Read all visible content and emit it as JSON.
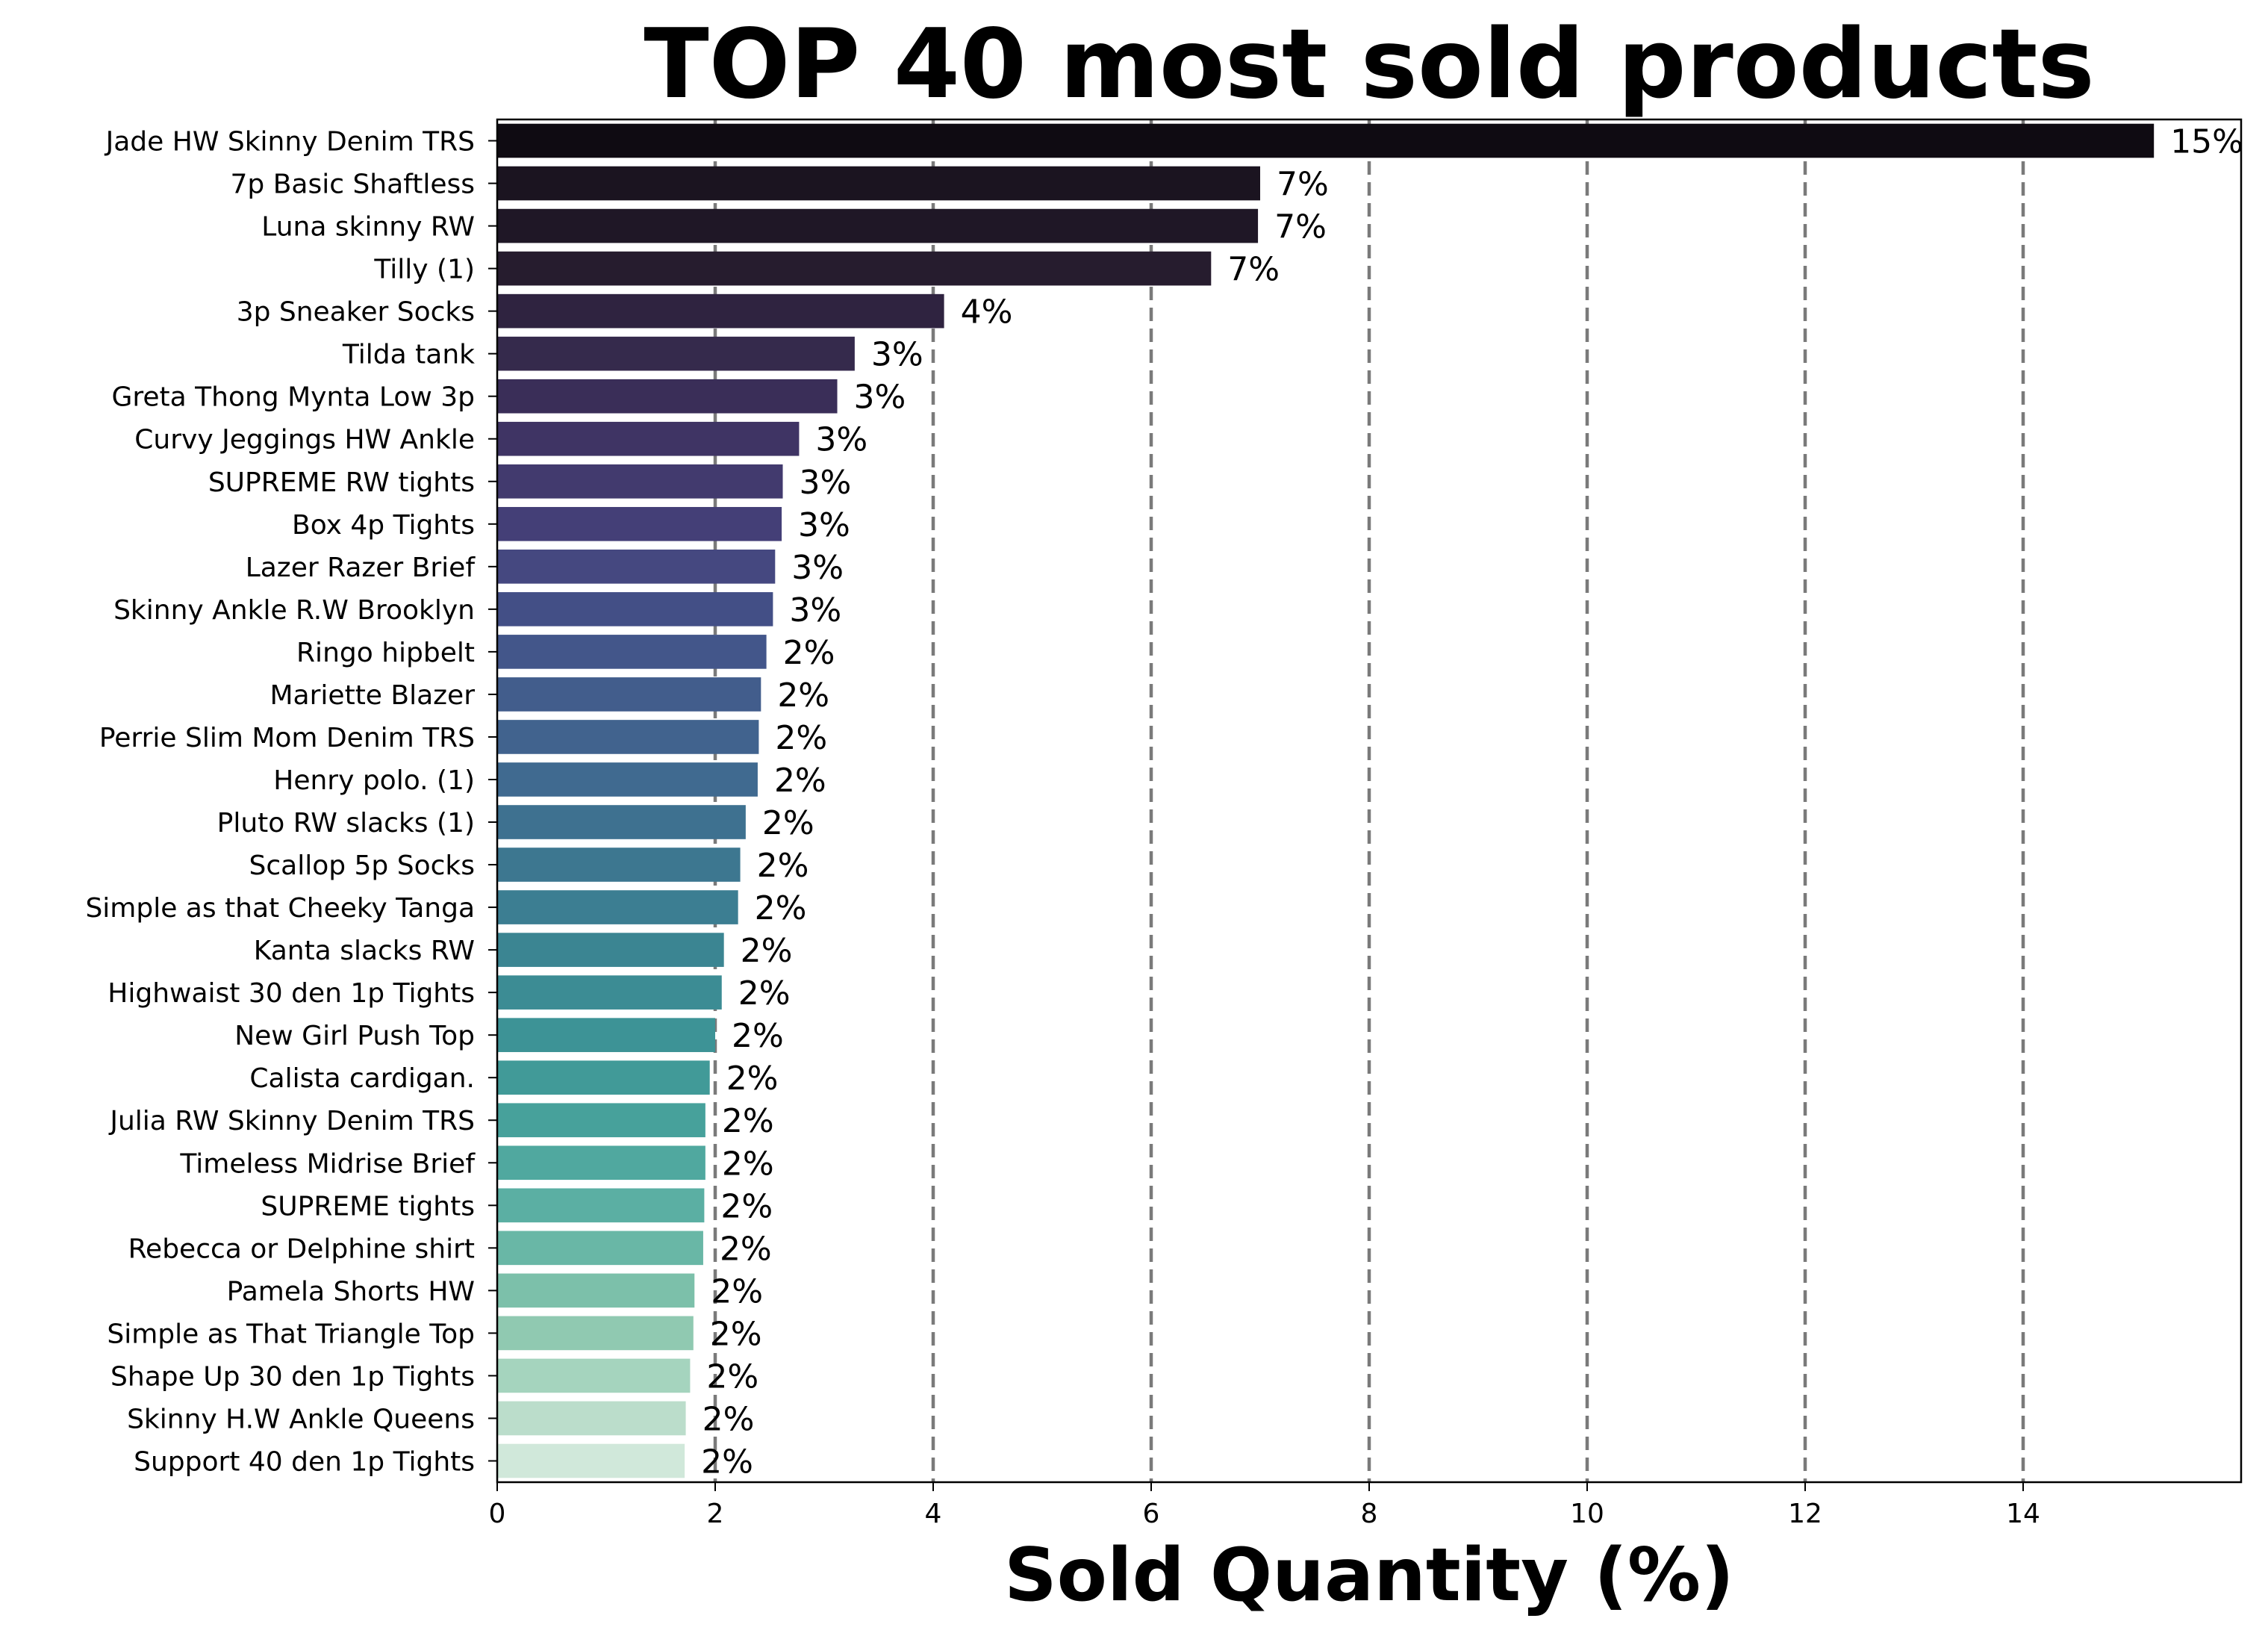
{
  "chart_data": {
    "type": "bar",
    "orientation": "horizontal",
    "title": "TOP 40 most sold products",
    "xlabel": "Sold Quantity (%)",
    "ylabel": "",
    "xlim": [
      0,
      16
    ],
    "x_ticks": [
      0,
      2,
      4,
      6,
      8,
      10,
      12,
      14
    ],
    "grid": "vertical dashed lines at x ticks",
    "colormap": "mako (dark to light)",
    "categories": [
      "Jade HW Skinny Denim TRS",
      "7p Basic Shaftless",
      "Luna skinny RW",
      "Tilly (1)",
      "3p Sneaker Socks",
      "Tilda tank",
      "Greta Thong Mynta Low 3p",
      "Curvy Jeggings HW Ankle",
      "SUPREME RW tights",
      "Box 4p Tights",
      "Lazer Razer Brief",
      "Skinny Ankle R.W Brooklyn",
      "Ringo hipbelt",
      "Mariette Blazer",
      "Perrie Slim Mom Denim TRS",
      "Henry polo. (1)",
      "Pluto RW slacks (1)",
      "Scallop 5p Socks",
      "Simple as that Cheeky Tanga",
      "Kanta slacks RW",
      "Highwaist 30 den 1p Tights",
      "New Girl Push Top",
      "Calista cardigan.",
      "Julia RW Skinny Denim TRS",
      "Timeless Midrise Brief",
      "SUPREME tights",
      "Rebecca or Delphine shirt",
      "Pamela Shorts HW",
      "Simple as That Triangle Top",
      "Shape Up 30 den 1p Tights",
      "Skinny H.W Ankle Queens",
      "Support 40 den 1p Tights"
    ],
    "values": [
      15.2,
      7.0,
      6.98,
      6.55,
      4.1,
      3.28,
      3.12,
      2.77,
      2.62,
      2.61,
      2.55,
      2.53,
      2.47,
      2.42,
      2.4,
      2.39,
      2.28,
      2.23,
      2.21,
      2.08,
      2.06,
      2.0,
      1.95,
      1.91,
      1.91,
      1.9,
      1.89,
      1.81,
      1.8,
      1.77,
      1.73,
      1.72
    ],
    "data_labels": [
      "15%",
      "7%",
      "7%",
      "7%",
      "4%",
      "3%",
      "3%",
      "3%",
      "3%",
      "3%",
      "3%",
      "3%",
      "2%",
      "2%",
      "2%",
      "2%",
      "2%",
      "2%",
      "2%",
      "2%",
      "2%",
      "2%",
      "2%",
      "2%",
      "2%",
      "2%",
      "2%",
      "2%",
      "2%",
      "2%",
      "2%",
      "2%"
    ],
    "colors": [
      "#0f0b12",
      "#1b1420",
      "#1f1726",
      "#261c2e",
      "#2f2340",
      "#352a4c",
      "#3a2e58",
      "#3f3464",
      "#423a6e",
      "#443f77",
      "#454880",
      "#434f86",
      "#43568a",
      "#425d8c",
      "#41638e",
      "#406a90",
      "#3e7190",
      "#3d7790",
      "#3c7e92",
      "#3b8592",
      "#3c8c94",
      "#3d9396",
      "#419a98",
      "#47a19b",
      "#50a89f",
      "#5bafa3",
      "#69b7a6",
      "#7cc0aa",
      "#90c9b1",
      "#a5d4be",
      "#bbddcb",
      "#d0e8da"
    ]
  }
}
